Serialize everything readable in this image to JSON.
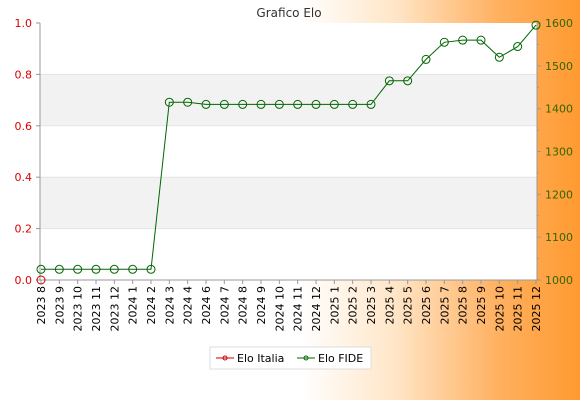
{
  "chart_data": {
    "type": "line",
    "title": "Grafico Elo",
    "categories": [
      "2023 8",
      "2023 9",
      "2023 10",
      "2023 11",
      "2023 12",
      "2024 1",
      "2024 2",
      "2024 3",
      "2024 4",
      "2024 6",
      "2024 7",
      "2024 8",
      "2024 9",
      "2024 10",
      "2024 11",
      "2024 12",
      "2025 1",
      "2025 2",
      "2025 3",
      "2025 4",
      "2025 5",
      "2025 6",
      "2025 7",
      "2025 8",
      "2025 9",
      "2025 10",
      "2025 11",
      "2025 12"
    ],
    "y_left": {
      "range": [
        0.0,
        1.0
      ],
      "ticks": [
        "0.0",
        "0.2",
        "0.4",
        "0.6",
        "0.8",
        "1.0"
      ],
      "color": "#dd0000"
    },
    "y_right": {
      "range": [
        1000,
        1600
      ],
      "ticks": [
        "1000",
        "1100",
        "1200",
        "1300",
        "1400",
        "1500",
        "1600"
      ],
      "color": "#336600"
    },
    "series": [
      {
        "name": "Elo Italia",
        "axis": "left",
        "color": "#cc0000",
        "values": [
          0.0,
          null,
          null,
          null,
          null,
          null,
          null,
          null,
          null,
          null,
          null,
          null,
          null,
          null,
          null,
          null,
          null,
          null,
          null,
          null,
          null,
          null,
          null,
          null,
          null,
          null,
          null,
          null
        ]
      },
      {
        "name": "Elo FIDE",
        "axis": "right",
        "color": "#006600",
        "values": [
          1025,
          1025,
          1025,
          1025,
          1025,
          1025,
          1025,
          1415,
          1415,
          1410,
          1410,
          1410,
          1410,
          1410,
          1410,
          1410,
          1410,
          1410,
          1410,
          1465,
          1465,
          1515,
          1555,
          1560,
          1560,
          1520,
          1545,
          1595
        ]
      }
    ],
    "grid": "horizontal-bands",
    "legend_position": "bottom-center"
  }
}
